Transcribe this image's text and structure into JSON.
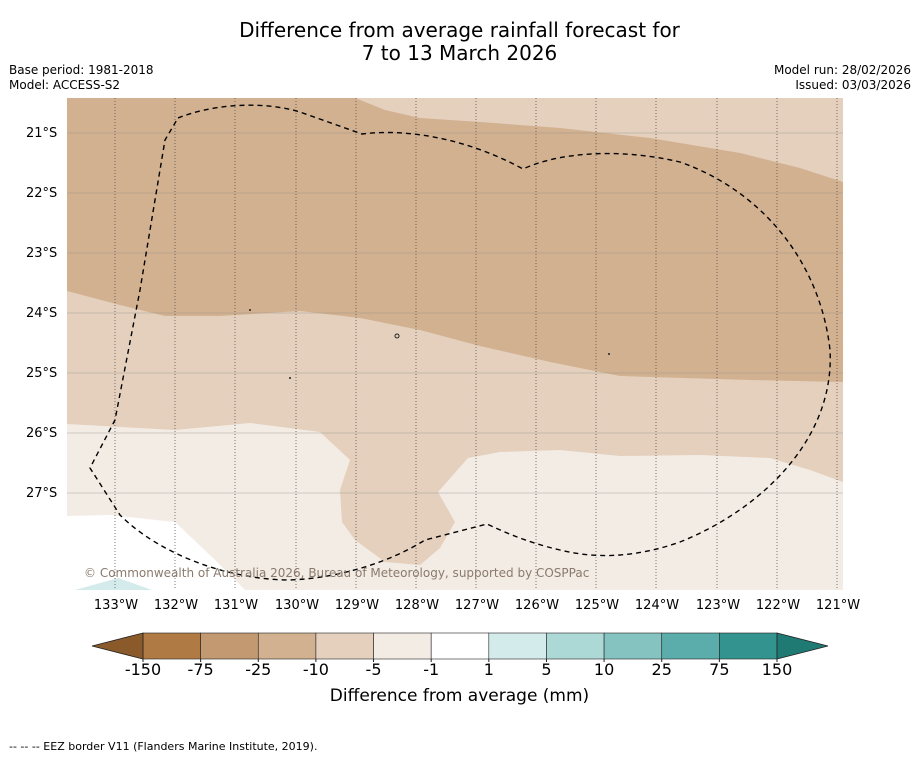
{
  "title": {
    "line1": "Difference from average rainfall forecast for",
    "line2": "7 to 13 March 2026"
  },
  "meta": {
    "base_period": "Base period: 1981-2018",
    "model": "Model: ACCESS-S2",
    "model_run": "Model run: 28/02/2026",
    "issued": "Issued: 03/03/2026"
  },
  "map": {
    "lat_labels": [
      "21°S",
      "22°S",
      "23°S",
      "24°S",
      "25°S",
      "26°S",
      "27°S"
    ],
    "lon_labels": [
      "133°W",
      "132°W",
      "131°W",
      "130°W",
      "129°W",
      "128°W",
      "127°W",
      "126°W",
      "125°W",
      "124°W",
      "123°W",
      "122°W",
      "121°W"
    ],
    "copyright": "© Commonwealth of Australia 2026, Bureau of Meteorology, supported by COSPPac"
  },
  "colorbar": {
    "ticks": [
      "-150",
      "-75",
      "-25",
      "-10",
      "-5",
      "-1",
      "1",
      "5",
      "10",
      "25",
      "75",
      "150"
    ],
    "colors": [
      "#8b5a2b",
      "#b07a44",
      "#c29970",
      "#d2b190",
      "#e4d0bd",
      "#f3ece5",
      "#ffffff",
      "#d3ebea",
      "#acd8d6",
      "#84c3c0",
      "#5aadaa",
      "#33948f",
      "#1f7a74"
    ],
    "label": "Difference from average (mm)"
  },
  "legend": {
    "eez_border": "--  --  -- EEZ border V11 (Flanders Marine Institute, 2019)."
  }
}
